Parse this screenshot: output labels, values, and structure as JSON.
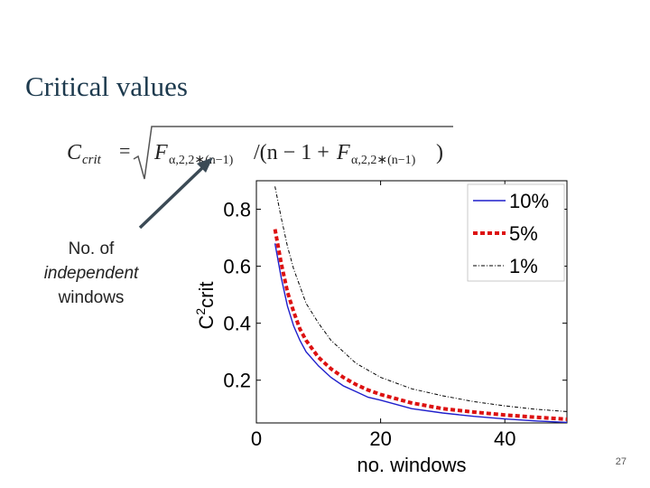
{
  "slide": {
    "title": "Critical values",
    "page_number": "27"
  },
  "formula": {
    "lhs_main": "C",
    "lhs_sub": "crit",
    "equals": "=",
    "F": "F",
    "f_sub": "α,2,2∗(n−1)",
    "div": "/(n − 1 + ",
    "close": ")"
  },
  "annotation": {
    "line1": "No. of",
    "line2": "independent",
    "line3": "windows",
    "arrow_color": "#3b4a55"
  },
  "chart_data": {
    "type": "line",
    "x": [
      3,
      4,
      5,
      6,
      7,
      8,
      10,
      12,
      14,
      16,
      18,
      20,
      25,
      30,
      35,
      40,
      45,
      50
    ],
    "series": [
      {
        "name": "10%",
        "color": "#1f1fcc",
        "style": "solid",
        "values": [
          0.68,
          0.56,
          0.46,
          0.39,
          0.34,
          0.3,
          0.25,
          0.21,
          0.18,
          0.16,
          0.14,
          0.13,
          0.1,
          0.085,
          0.073,
          0.064,
          0.057,
          0.052
        ]
      },
      {
        "name": "5%",
        "color": "#dd1111",
        "style": "dotted",
        "values": [
          0.73,
          0.61,
          0.51,
          0.44,
          0.38,
          0.34,
          0.28,
          0.24,
          0.21,
          0.185,
          0.165,
          0.15,
          0.12,
          0.1,
          0.088,
          0.078,
          0.07,
          0.063
        ]
      },
      {
        "name": "1%",
        "color": "#000000",
        "style": "dashdot",
        "values": [
          0.88,
          0.77,
          0.67,
          0.59,
          0.53,
          0.47,
          0.4,
          0.34,
          0.3,
          0.26,
          0.235,
          0.21,
          0.17,
          0.145,
          0.125,
          0.11,
          0.098,
          0.09
        ]
      }
    ],
    "xlabel": "no. windows",
    "ylabel_main": "C",
    "ylabel_sup": "2",
    "ylabel_sub": "crit",
    "xlim": [
      0,
      50
    ],
    "ylim": [
      0.05,
      0.9
    ],
    "xticks": [
      0,
      20,
      40
    ],
    "yticks": [
      0.2,
      0.4,
      0.6,
      0.8
    ],
    "grid": false,
    "legend_position": "top-right"
  }
}
